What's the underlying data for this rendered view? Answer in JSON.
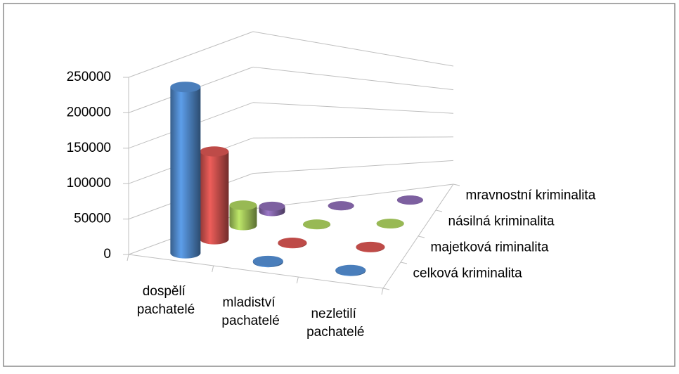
{
  "chart_data": {
    "type": "bar3d",
    "categories": [
      "dospělí pachatelé",
      "mladiství pachatelé",
      "nezletilí pachatelé"
    ],
    "series": [
      {
        "name": "celková kriminalita",
        "color": "#4a7ebb",
        "values": [
          245000,
          1500,
          1200
        ]
      },
      {
        "name": "majetková riminalita",
        "color": "#be4b48",
        "values": [
          130000,
          1000,
          800
        ]
      },
      {
        "name": "násilná kriminalita",
        "color": "#98b954",
        "values": [
          30000,
          500,
          300
        ]
      },
      {
        "name": "mravnostní kriminalita",
        "color": "#7d60a0",
        "values": [
          8000,
          200,
          150
        ]
      }
    ],
    "ylim": [
      0,
      250000
    ],
    "yticks": [
      0,
      50000,
      100000,
      150000,
      200000,
      250000
    ],
    "grid": true
  }
}
